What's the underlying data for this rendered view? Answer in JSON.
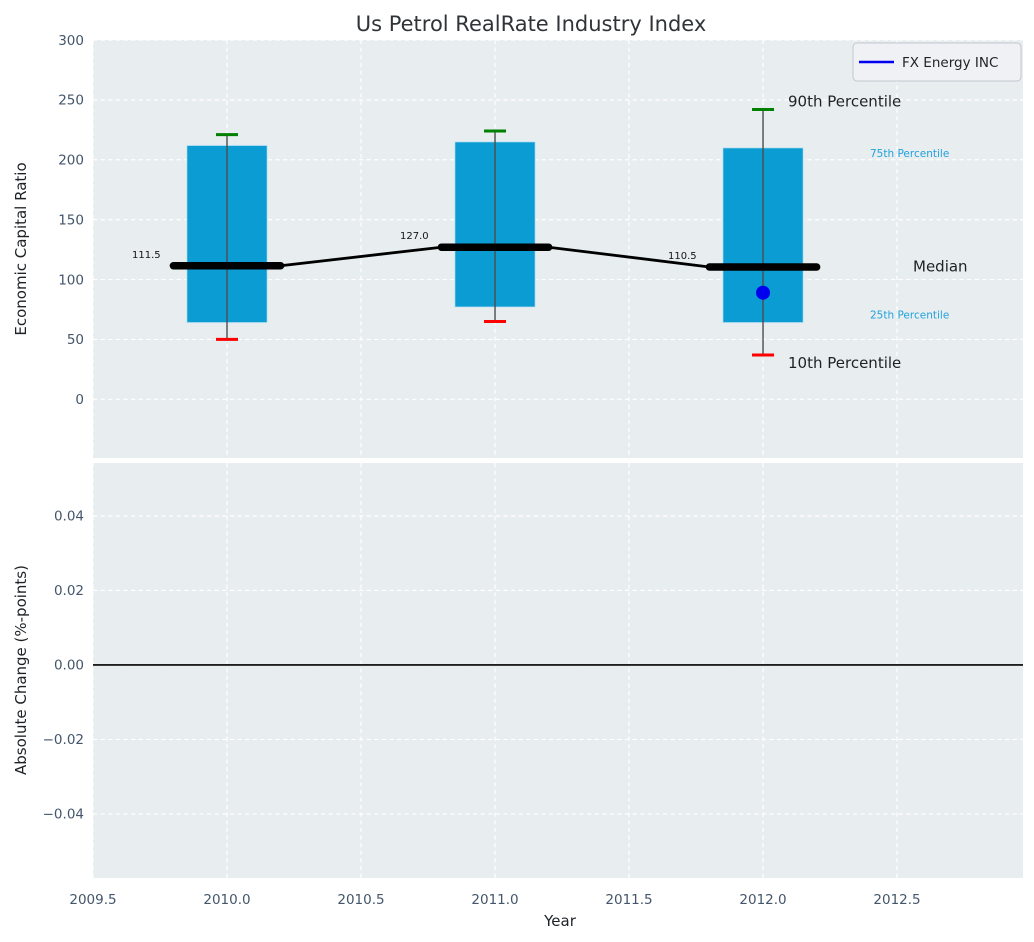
{
  "figure": {
    "title": "Us Petrol RealRate Industry Index",
    "background": "#ffffff",
    "panel_background": "#e8edef",
    "grid_color": "#ffffff",
    "tick_color": "#44566b",
    "text_color": "#1e2226",
    "title_color": "#303438"
  },
  "legend": {
    "label": "FX Energy INC",
    "line_color": "#0000ee",
    "box_fill": "#eff1f5",
    "box_border": "#c3c6cf"
  },
  "axes": {
    "x": {
      "label": "Year",
      "tick_labels": [
        "2009.5",
        "2010.0",
        "2010.5",
        "2011.0",
        "2011.5",
        "2012.0",
        "2012.5"
      ],
      "tick_values": [
        2009.5,
        2010.0,
        2010.5,
        2011.0,
        2011.5,
        2012.0,
        2012.5
      ],
      "range": [
        2009.5,
        2012.97
      ]
    },
    "top_y": {
      "label": "Economic Capital Ratio",
      "tick_labels": [
        "300",
        "250",
        "200",
        "150",
        "100",
        "50",
        "0"
      ],
      "tick_values": [
        300,
        250,
        200,
        150,
        100,
        50,
        0
      ],
      "range": [
        -49,
        300
      ]
    },
    "bottom_y": {
      "label": "Absolute Change (%-points)",
      "tick_labels": [
        "0.04",
        "0.02",
        "0.00",
        "−0.02",
        "−0.04"
      ],
      "tick_values": [
        0.04,
        0.02,
        0.0,
        -0.02,
        -0.04
      ],
      "range": [
        -0.0572,
        0.0542
      ]
    }
  },
  "annotations": [
    {
      "label": "90th Percentile",
      "stat": "p90",
      "color": "#1e2226",
      "font_size": 15
    },
    {
      "label": "75th Percentile",
      "stat": "p75",
      "color": "#22a2dc",
      "font_size": 10.5
    },
    {
      "label": "Median",
      "stat": "median",
      "color": "#1e2226",
      "font_size": 15
    },
    {
      "label": "25th Percentile",
      "stat": "p25",
      "color": "#22a2dc",
      "font_size": 10.5
    },
    {
      "label": "10th Percentile",
      "stat": "p10",
      "color": "#1e2226",
      "font_size": 15
    }
  ],
  "chart_data": [
    {
      "type": "bar",
      "title": "Us Petrol RealRate Industry Index",
      "xlabel": "Year",
      "ylabel": "Economic Capital Ratio",
      "categories": [
        2010,
        2011,
        2012
      ],
      "series": [
        {
          "name": "90th Percentile",
          "values": [
            221,
            224,
            242
          ],
          "color": "#008000"
        },
        {
          "name": "75th Percentile",
          "values": [
            212,
            215,
            210
          ],
          "color": "#0a9cd2"
        },
        {
          "name": "Median",
          "values": [
            111.5,
            127.0,
            110.5
          ],
          "color": "#000000"
        },
        {
          "name": "25th Percentile",
          "values": [
            64,
            77,
            64
          ],
          "color": "#0a9cd2"
        },
        {
          "name": "10th Percentile",
          "values": [
            50,
            65,
            37
          ],
          "color": "#ff0000"
        }
      ],
      "median_labels": [
        "111.5",
        "127.0",
        "110.5"
      ],
      "company_point": {
        "name": "FX Energy INC",
        "x": 2012,
        "y": 89,
        "color": "#0000ee"
      },
      "bar_color": "#0a9cd2",
      "bar_width_years": 0.3,
      "whisker_color": "#4d4d4d",
      "ylim": [
        -49,
        300
      ],
      "xlim": [
        2009.5,
        2012.97
      ],
      "grid": true,
      "legend_position": "upper right"
    },
    {
      "type": "line",
      "ylabel": "Absolute Change (%-points)",
      "x": [],
      "series": [],
      "zero_line": 0.0,
      "ylim": [
        -0.0572,
        0.0542
      ],
      "xlim": [
        2009.5,
        2012.97
      ],
      "grid": true
    }
  ]
}
